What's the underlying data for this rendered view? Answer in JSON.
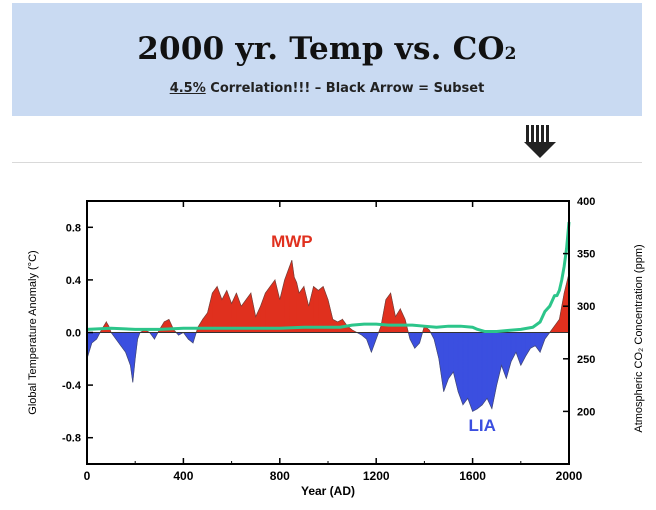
{
  "banner": {
    "title_main": "2000 yr. Temp vs. CO",
    "title_sub": "2",
    "subtitle_pct": "4.5%",
    "subtitle_rest": " Correlation!!! – Black Arrow = Subset"
  },
  "colors": {
    "banner_bg": "#c9daf2",
    "warm_fill": "#e0301e",
    "cool_fill": "#3b4fe0",
    "co2_line": "#2cc58a",
    "mwp_label": "#e0301e",
    "lia_label": "#3b4fe0"
  },
  "icons": {
    "arrow": "down-arrow-icon"
  },
  "chart_data": {
    "type": "area",
    "xlabel": "Year (AD)",
    "ylabel_left": "Global Temperature Anomaly (°C)",
    "ylabel_right": "Atmospheric CO₂ Concentration (ppm)",
    "xlim": [
      0,
      2000
    ],
    "ylim_left": [
      -1.0,
      1.0
    ],
    "ylim_right": [
      150,
      400
    ],
    "x_ticks": [
      "0",
      "400",
      "800",
      "1200",
      "1600",
      "2000"
    ],
    "y_left_ticks": [
      "0.8",
      "0.4",
      "0.0",
      "-0.4",
      "-0.8"
    ],
    "y_right_ticks": [
      "400",
      "350",
      "300",
      "250",
      "200"
    ],
    "annotations": [
      {
        "text": "MWP",
        "x": 850,
        "y": 0.65
      },
      {
        "text": "LIA",
        "x": 1640,
        "y": -0.75
      }
    ],
    "series": [
      {
        "name": "",
        "axis": "left",
        "x": [
          0,
          20,
          40,
          60,
          80,
          90,
          100,
          120,
          140,
          160,
          180,
          190,
          200,
          210,
          220,
          240,
          260,
          280,
          300,
          320,
          340,
          350,
          360,
          380,
          400,
          420,
          440,
          460,
          480,
          500,
          520,
          540,
          560,
          580,
          600,
          620,
          640,
          660,
          680,
          700,
          720,
          740,
          760,
          780,
          800,
          820,
          840,
          850,
          860,
          870,
          880,
          900,
          920,
          940,
          960,
          980,
          1000,
          1020,
          1040,
          1060,
          1080,
          1100,
          1120,
          1140,
          1160,
          1180,
          1200,
          1220,
          1240,
          1260,
          1280,
          1300,
          1320,
          1340,
          1360,
          1380,
          1400,
          1420,
          1440,
          1460,
          1480,
          1500,
          1520,
          1540,
          1560,
          1580,
          1600,
          1620,
          1640,
          1660,
          1680,
          1700,
          1720,
          1740,
          1760,
          1780,
          1800,
          1820,
          1840,
          1860,
          1880,
          1900,
          1920,
          1940,
          1960,
          1980,
          2000
        ],
        "values": [
          -0.2,
          -0.08,
          -0.05,
          0.02,
          0.08,
          0.05,
          0.0,
          -0.05,
          -0.1,
          -0.15,
          -0.25,
          -0.38,
          -0.2,
          -0.05,
          0.0,
          0.02,
          0.0,
          -0.05,
          0.02,
          0.08,
          0.1,
          0.06,
          0.02,
          -0.02,
          0.0,
          -0.05,
          -0.08,
          0.04,
          0.1,
          0.15,
          0.3,
          0.35,
          0.25,
          0.32,
          0.22,
          0.3,
          0.2,
          0.25,
          0.3,
          0.12,
          0.2,
          0.3,
          0.35,
          0.4,
          0.25,
          0.4,
          0.5,
          0.55,
          0.42,
          0.38,
          0.3,
          0.35,
          0.2,
          0.35,
          0.32,
          0.35,
          0.25,
          0.1,
          0.08,
          0.1,
          0.05,
          0.02,
          0.0,
          -0.02,
          -0.05,
          -0.15,
          -0.05,
          0.05,
          0.25,
          0.3,
          0.12,
          0.18,
          0.1,
          -0.05,
          -0.12,
          -0.08,
          0.05,
          0.02,
          -0.05,
          -0.2,
          -0.45,
          -0.35,
          -0.3,
          -0.45,
          -0.55,
          -0.5,
          -0.6,
          -0.58,
          -0.55,
          -0.5,
          -0.58,
          -0.4,
          -0.25,
          -0.35,
          -0.22,
          -0.15,
          -0.25,
          -0.18,
          -0.12,
          -0.1,
          -0.15,
          -0.05,
          0.0,
          0.05,
          0.1,
          0.3,
          0.45
        ]
      },
      {
        "name": "",
        "axis": "right",
        "x": [
          0,
          100,
          200,
          300,
          400,
          500,
          600,
          700,
          800,
          900,
          1000,
          1050,
          1100,
          1150,
          1200,
          1250,
          1300,
          1350,
          1400,
          1450,
          1500,
          1550,
          1600,
          1620,
          1650,
          1700,
          1750,
          1800,
          1850,
          1880,
          1900,
          1920,
          1940,
          1950,
          1960,
          1970,
          1980,
          1990,
          2000
        ],
        "values": [
          278,
          279,
          278,
          278,
          279,
          279,
          279,
          279,
          279,
          280,
          280,
          280,
          282,
          283,
          283,
          282,
          282,
          282,
          281,
          280,
          281,
          281,
          280,
          278,
          276,
          276,
          277,
          278,
          280,
          285,
          295,
          300,
          310,
          310,
          315,
          325,
          338,
          355,
          380
        ]
      }
    ]
  }
}
